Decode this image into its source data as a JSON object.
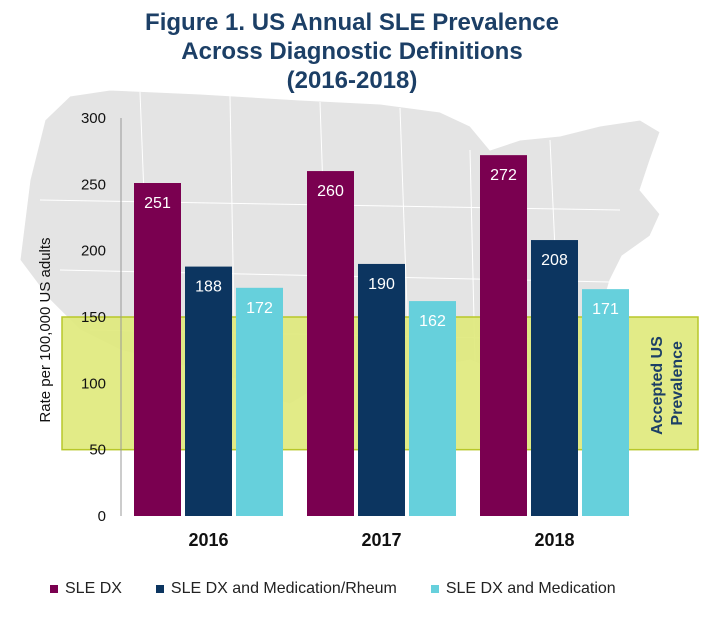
{
  "chart_data": {
    "type": "bar",
    "title_lines": [
      "Figure 1. US Annual SLE Prevalence",
      "Across Diagnostic Definitions",
      "(2016-2018)"
    ],
    "xlabel": "",
    "ylabel": "Rate per 100,000 US adults",
    "ylim": [
      0,
      300
    ],
    "yticks": [
      0,
      50,
      100,
      150,
      200,
      250,
      300
    ],
    "categories": [
      "2016",
      "2017",
      "2018"
    ],
    "series": [
      {
        "name": "SLE DX",
        "color": "#7a0050",
        "values": [
          251,
          260,
          272
        ]
      },
      {
        "name": "SLE DX and Medication/Rheum",
        "color": "#0c3560",
        "values": [
          188,
          190,
          208
        ]
      },
      {
        "name": "SLE DX and Medication",
        "color": "#66d0dc",
        "values": [
          172,
          162,
          171
        ]
      }
    ],
    "reference_band": {
      "label_lines": [
        "Accepted US",
        "Prevalence"
      ],
      "range": [
        50,
        150
      ],
      "fill": "#dfe97a",
      "stroke": "#b8c72a"
    },
    "legend_position": "bottom",
    "background": "US map silhouette (decorative)"
  }
}
